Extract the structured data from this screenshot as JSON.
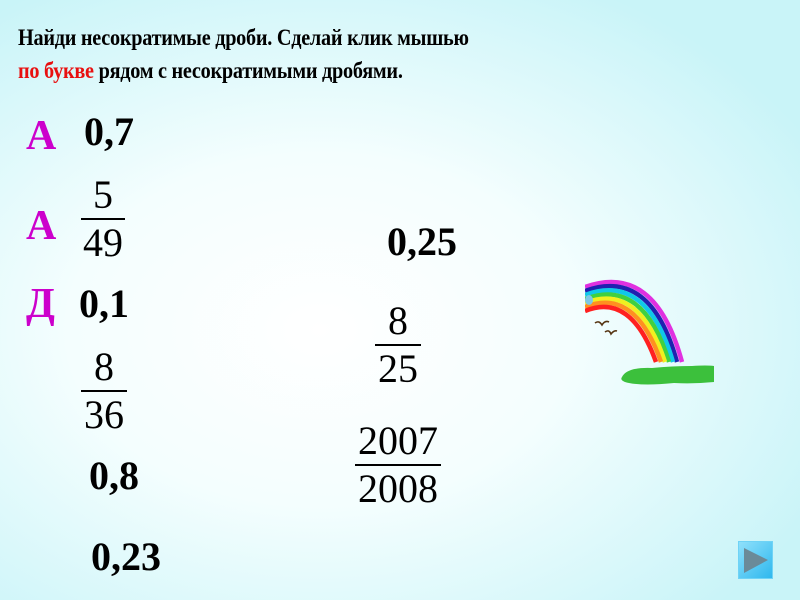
{
  "title": {
    "line1": "Найди несократимые дроби. Сделай клик мышью",
    "line2_red": "по букве",
    "line2_rest": " рядом с несократимыми дробями."
  },
  "letters": [
    "А",
    "А",
    "Д"
  ],
  "items": {
    "d07": "0,7",
    "f5_49": {
      "num": "5",
      "den": "49"
    },
    "d025": "0,25",
    "d01": "0,1",
    "f8_25": {
      "num": "8",
      "den": "25"
    },
    "f8_36": {
      "num": "8",
      "den": "36"
    },
    "f2007_2008": {
      "num": "2007",
      "den": "2008"
    },
    "d08": "0,8",
    "d023": "0,23"
  },
  "colors": {
    "letter": "#cc00cc",
    "highlight": "#e81010",
    "button": "#2fb8ee"
  },
  "icons": {
    "next": "play-triangle-icon",
    "picture": "rainbow-image"
  }
}
